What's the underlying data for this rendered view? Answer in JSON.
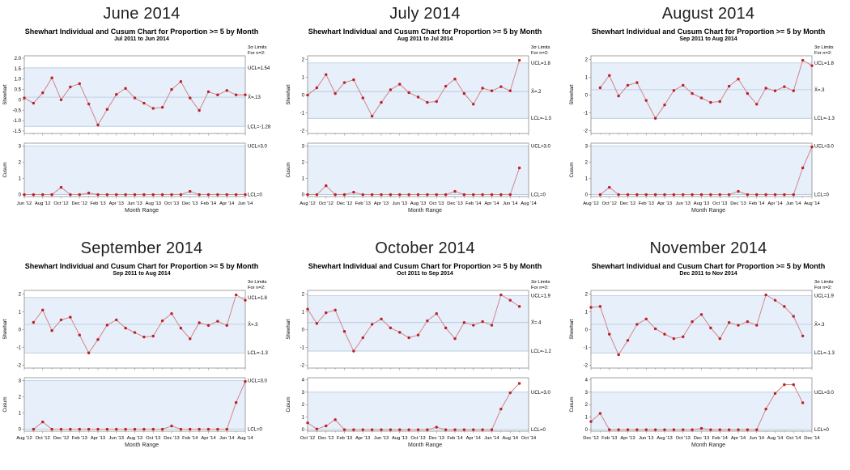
{
  "colors": {
    "marker": "#bf1f24",
    "line": "#cd7d7d",
    "band": "#e6effa",
    "limit_line": "#a9c0da",
    "axis": "#8c8c8c",
    "text": "#000000"
  },
  "limits_header": [
    "3σ Limits",
    "For n=2:"
  ],
  "chart_data": [
    {
      "type": "line",
      "title": "June 2014",
      "chart_title": "Shewhart Individual and Cusum Chart for Proportion >= 5 by Month",
      "subtitle": "Jul 2011 to Jun 2014",
      "xlabel": "Month Range",
      "x_slots": 25,
      "x_offset": 0,
      "x_tick_labels": [
        "Jun '12",
        "Aug '12",
        "Oct '12",
        "Dec '12",
        "Feb '13",
        "Apr '13",
        "Jun '13",
        "Aug '13",
        "Oct '13",
        "Dec '13",
        "Feb '14",
        "Apr '14",
        "Jun '14"
      ],
      "shewhart": {
        "ylabel": "Shewhart",
        "ylim": [
          -1.62,
          2.12
        ],
        "yticks": [
          2.0,
          1.5,
          1.0,
          0.5,
          0,
          -0.5,
          -1.0,
          -1.5
        ],
        "ytick_labels": [
          "2.0",
          "1.5",
          "1.0",
          "0.5",
          "0",
          "-0.5",
          "-1.0",
          "-1.5"
        ],
        "ucl": 1.54,
        "ucl_label": "UCL=1.54",
        "center": 0.13,
        "center_label": "X̄=.13",
        "lcl": -1.28,
        "lcl_label": "LCL=-1.28",
        "values": [
          0.09,
          -0.16,
          0.34,
          1.06,
          0.0,
          0.62,
          0.78,
          -0.2,
          -1.21,
          -0.46,
          0.26,
          0.55,
          0.09,
          -0.16,
          -0.41,
          -0.36,
          0.5,
          0.88,
          0.09,
          -0.51,
          0.39,
          0.24,
          0.45,
          0.24,
          0.24
        ]
      },
      "cusum": {
        "ylabel": "Cusum",
        "ylim": [
          -0.12,
          3.18
        ],
        "yticks": [
          3,
          2,
          1,
          0
        ],
        "ytick_labels": [
          "3",
          "2",
          "1",
          "0"
        ],
        "ucl": 3,
        "ucl_label": "UCL=3.0",
        "lcl": 0,
        "lcl_label": "LCL=0",
        "band": [
          0,
          3
        ],
        "values": [
          0,
          0,
          0,
          0,
          0.45,
          0,
          0,
          0.1,
          0,
          0,
          0,
          0,
          0,
          0,
          0,
          0,
          0,
          0,
          0.2,
          0,
          0,
          0,
          0,
          0,
          0
        ]
      }
    },
    {
      "type": "line",
      "title": "July 2014",
      "chart_title": "Shewhart Individual and Cusum Chart for Proportion >= 5 by Month",
      "subtitle": "Aug 2011 to Jul 2014",
      "xlabel": "Month Range",
      "x_slots": 25,
      "x_offset": 0,
      "x_tick_labels": [
        "Aug '12",
        "Oct '12",
        "Dec '12",
        "Feb '13",
        "Apr '13",
        "Jun '13",
        "Aug '13",
        "Oct '13",
        "Dec '13",
        "Feb '14",
        "Apr '14",
        "Jun '14",
        "Aug '14"
      ],
      "shewhart": {
        "ylabel": "Shewhart",
        "ylim": [
          -2.15,
          2.2
        ],
        "yticks": [
          2,
          1,
          0,
          -1,
          -2
        ],
        "ytick_labels": [
          "2",
          "1",
          "0",
          "-1",
          "-2"
        ],
        "ucl": 1.8,
        "ucl_label": "UCL=1.8",
        "center": 0.2,
        "center_label": "X̄=.2",
        "lcl": -1.3,
        "lcl_label": "LCL=-1.3",
        "values": [
          0.0,
          0.41,
          1.15,
          0.09,
          0.7,
          0.86,
          -0.16,
          -1.18,
          -0.41,
          0.3,
          0.61,
          0.14,
          -0.11,
          -0.41,
          -0.36,
          0.5,
          0.9,
          0.09,
          -0.51,
          0.39,
          0.24,
          0.47,
          0.24,
          1.95
        ]
      },
      "cusum": {
        "ylabel": "Cusum",
        "ylim": [
          -0.12,
          3.18
        ],
        "yticks": [
          3,
          2,
          1,
          0
        ],
        "ytick_labels": [
          "3",
          "2",
          "1",
          "0"
        ],
        "ucl": 3,
        "ucl_label": "UCL=3.0",
        "lcl": 0,
        "lcl_label": "LCL=0",
        "band": [
          0,
          3
        ],
        "values": [
          0,
          0,
          0.55,
          0,
          0,
          0.15,
          0,
          0,
          0,
          0,
          0,
          0,
          0,
          0,
          0,
          0,
          0.2,
          0,
          0,
          0,
          0,
          0,
          0,
          1.65
        ]
      }
    },
    {
      "type": "line",
      "title": "August 2014",
      "chart_title": "Shewhart Individual and Cusum Chart for Proportion >= 5 by Month",
      "subtitle": "Sep 2011 to Aug 2014",
      "xlabel": "Month Range",
      "x_slots": 25,
      "x_offset": 1,
      "x_tick_labels": [
        "Aug '12",
        "Oct '12",
        "Dec '12",
        "Feb '13",
        "Apr '13",
        "Jun '13",
        "Aug '13",
        "Oct '13",
        "Dec '13",
        "Feb '14",
        "Apr '14",
        "Jun '14",
        "Aug '14"
      ],
      "shewhart": {
        "ylabel": "Shewhart",
        "ylim": [
          -2.15,
          2.2
        ],
        "yticks": [
          2,
          1,
          0,
          -1,
          -2
        ],
        "ytick_labels": [
          "2",
          "1",
          "0",
          "-1",
          "-2"
        ],
        "ucl": 1.8,
        "ucl_label": "UCL=1.8",
        "center": 0.3,
        "center_label": "X̄=.3",
        "lcl": -1.3,
        "lcl_label": "LCL=-1.3",
        "values": [
          0.41,
          1.1,
          -0.05,
          0.55,
          0.7,
          -0.3,
          -1.3,
          -0.55,
          0.26,
          0.55,
          0.09,
          -0.16,
          -0.41,
          -0.36,
          0.5,
          0.9,
          0.09,
          -0.51,
          0.39,
          0.24,
          0.47,
          0.24,
          1.95,
          1.65
        ]
      },
      "cusum": {
        "ylabel": "Cusum",
        "ylim": [
          -0.12,
          3.18
        ],
        "yticks": [
          3,
          2,
          1,
          0
        ],
        "ytick_labels": [
          "3",
          "2",
          "1",
          "0"
        ],
        "ucl": 3,
        "ucl_label": "UCL=3.0",
        "lcl": 0,
        "lcl_label": "LCL=0",
        "band": [
          0,
          3
        ],
        "values": [
          0,
          0.45,
          0,
          0,
          0,
          0,
          0,
          0,
          0,
          0,
          0,
          0,
          0,
          0,
          0,
          0.2,
          0,
          0,
          0,
          0,
          0,
          0,
          1.65,
          2.95
        ]
      }
    },
    {
      "type": "line",
      "title": "September 2014",
      "chart_title": "Shewhart Individual and Cusum Chart for Proportion >= 5 by Month",
      "subtitle": "Sep 2011 to Aug 2014",
      "xlabel": "Month Range",
      "x_slots": 25,
      "x_offset": 1,
      "x_tick_labels": [
        "Aug '12",
        "Oct '12",
        "Dec '12",
        "Feb '13",
        "Apr '13",
        "Jun '13",
        "Aug '13",
        "Oct '13",
        "Dec '13",
        "Feb '14",
        "Apr '14",
        "Jun '14",
        "Aug '14"
      ],
      "shewhart": {
        "ylabel": "Shewhart",
        "ylim": [
          -2.15,
          2.2
        ],
        "yticks": [
          2,
          1,
          0,
          -1,
          -2
        ],
        "ytick_labels": [
          "2",
          "1",
          "0",
          "-1",
          "-2"
        ],
        "ucl": 1.8,
        "ucl_label": "UCL=1.8",
        "center": 0.3,
        "center_label": "X̄=.3",
        "lcl": -1.3,
        "lcl_label": "LCL=-1.3",
        "values": [
          0.41,
          1.1,
          -0.05,
          0.55,
          0.7,
          -0.3,
          -1.3,
          -0.55,
          0.26,
          0.55,
          0.09,
          -0.16,
          -0.41,
          -0.36,
          0.5,
          0.9,
          0.09,
          -0.51,
          0.39,
          0.24,
          0.47,
          0.24,
          1.95,
          1.65
        ]
      },
      "cusum": {
        "ylabel": "Cusum",
        "ylim": [
          -0.12,
          3.18
        ],
        "yticks": [
          3,
          2,
          1,
          0
        ],
        "ytick_labels": [
          "3",
          "2",
          "1",
          "0"
        ],
        "ucl": 3,
        "ucl_label": "UCL=3.0",
        "lcl": 0,
        "lcl_label": "LCL=0",
        "band": [
          0,
          3
        ],
        "values": [
          0,
          0.45,
          0,
          0,
          0,
          0,
          0,
          0,
          0,
          0,
          0,
          0,
          0,
          0,
          0,
          0.2,
          0,
          0,
          0,
          0,
          0,
          0,
          1.65,
          2.95
        ]
      }
    },
    {
      "type": "line",
      "title": "October 2014",
      "chart_title": "Shewhart Individual and Cusum Chart for Proportion >= 5 by Month",
      "subtitle": "Oct 2011 to Sep 2014",
      "xlabel": "Month Range",
      "x_slots": 25,
      "x_offset": 0,
      "x_tick_labels": [
        "Oct '12",
        "Dec '12",
        "Feb '13",
        "Apr '13",
        "Jun '13",
        "Aug '13",
        "Oct '13",
        "Dec '13",
        "Feb '14",
        "Apr '14",
        "Jun '14",
        "Aug '14",
        "Oct '14"
      ],
      "shewhart": {
        "ylabel": "Shewhart",
        "ylim": [
          -2.15,
          2.2
        ],
        "yticks": [
          2,
          1,
          0,
          -1,
          -2
        ],
        "ytick_labels": [
          "2",
          "1",
          "0",
          "-1",
          "-2"
        ],
        "ucl": 1.9,
        "ucl_label": "UCL=1.9",
        "center": 0.4,
        "center_label": "X̄=.4",
        "lcl": -1.2,
        "lcl_label": "LCL=-1.2",
        "values": [
          1.15,
          0.35,
          0.95,
          1.1,
          -0.1,
          -1.2,
          -0.45,
          0.3,
          0.6,
          0.1,
          -0.15,
          -0.45,
          -0.3,
          0.5,
          0.9,
          0.1,
          -0.5,
          0.4,
          0.25,
          0.45,
          0.25,
          1.95,
          1.65,
          1.3
        ]
      },
      "cusum": {
        "ylabel": "Cusum",
        "ylim": [
          -0.12,
          4.15
        ],
        "yticks": [
          4,
          3,
          2,
          1,
          0
        ],
        "ytick_labels": [
          "4",
          "3",
          "2",
          "1",
          "0"
        ],
        "ucl": 3,
        "ucl_label": "UCL=3.0",
        "lcl": 0,
        "lcl_label": "LCL=0",
        "band": [
          0,
          3
        ],
        "values": [
          0.55,
          0.05,
          0.3,
          0.8,
          0,
          0,
          0,
          0,
          0,
          0,
          0,
          0,
          0,
          0,
          0.2,
          0,
          0,
          0,
          0,
          0,
          0,
          1.65,
          2.95,
          3.7
        ]
      }
    },
    {
      "type": "line",
      "title": "November 2014",
      "chart_title": "Shewhart Individual and Cusum Chart for Proportion >= 5 by Month",
      "subtitle": "Dec 2011 to Nov 2014",
      "xlabel": "Month Range",
      "x_slots": 25,
      "x_offset": 0,
      "x_tick_labels": [
        "Dec '12",
        "Feb '13",
        "Apr '13",
        "Jun '13",
        "Aug '13",
        "Oct '13",
        "Dec '13",
        "Feb '14",
        "Apr '14",
        "Jun '14",
        "Aug '14",
        "Oct '14",
        "Dec '14"
      ],
      "shewhart": {
        "ylabel": "Shewhart",
        "ylim": [
          -2.15,
          2.2
        ],
        "yticks": [
          2,
          1,
          0,
          -1,
          -2
        ],
        "ytick_labels": [
          "2",
          "1",
          "0",
          "-1",
          "-2"
        ],
        "ucl": 1.9,
        "ucl_label": "UCL=1.9",
        "center": 0.3,
        "center_label": "X̄=.3",
        "lcl": -1.3,
        "lcl_label": "LCL=-1.3",
        "values": [
          1.25,
          1.3,
          -0.25,
          -1.4,
          -0.6,
          0.3,
          0.6,
          0.05,
          -0.25,
          -0.5,
          -0.4,
          0.45,
          0.85,
          0.1,
          -0.5,
          0.4,
          0.25,
          0.45,
          0.25,
          1.95,
          1.65,
          1.3,
          0.75,
          -0.35
        ]
      },
      "cusum": {
        "ylabel": "Cusum",
        "ylim": [
          -0.12,
          4.15
        ],
        "yticks": [
          4,
          3,
          2,
          1,
          0
        ],
        "ytick_labels": [
          "4",
          "3",
          "2",
          "1",
          "0"
        ],
        "ucl": 3,
        "ucl_label": "UCL=3.0",
        "lcl": 0,
        "lcl_label": "LCL=0",
        "band": [
          0,
          3
        ],
        "values": [
          0.65,
          1.3,
          0,
          0,
          0,
          0,
          0,
          0,
          0,
          0,
          0,
          0,
          0.1,
          0,
          0,
          0,
          0,
          0,
          0,
          1.65,
          2.9,
          3.6,
          3.6,
          2.15
        ]
      }
    }
  ]
}
